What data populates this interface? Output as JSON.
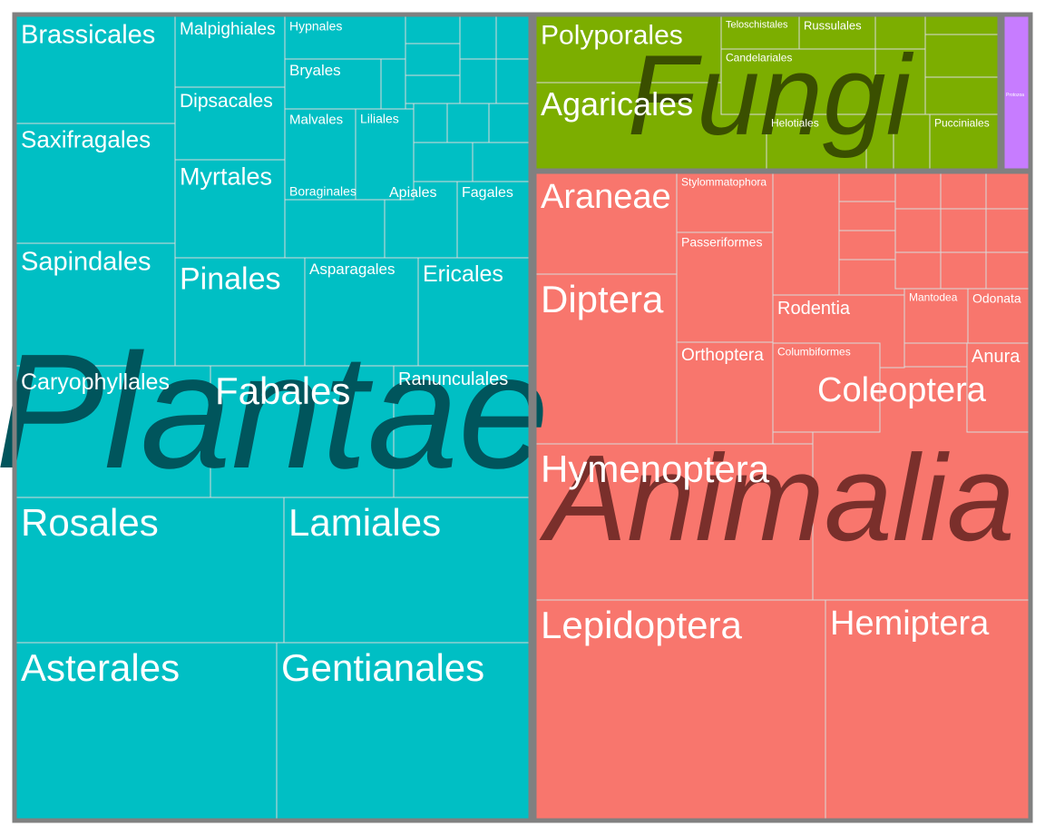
{
  "chart_data": {
    "type": "treemap",
    "title": "",
    "colors": {
      "Plantae": "#00bfc4",
      "Fungi": "#7cae00",
      "Animalia": "#f8766d",
      "Protozoa": "#c77cff",
      "border": "#808080",
      "cell_line": "#d9d9d9",
      "Plantae_label": "#00555c",
      "Fungi_label": "#3a4f00",
      "Animalia_label": "#7a2f2b"
    },
    "kingdoms": [
      {
        "name": "Plantae",
        "orders": [
          {
            "name": "Asterales",
            "value": 5400
          },
          {
            "name": "Gentianales",
            "value": 5300
          },
          {
            "name": "Rosales",
            "value": 4850
          },
          {
            "name": "Lamiales",
            "value": 4500
          },
          {
            "name": "Fabales",
            "value": 2450
          },
          {
            "name": "Caryophyllales",
            "value": 2100
          },
          {
            "name": "Ranunculales",
            "value": 1650
          },
          {
            "name": "Brassicales",
            "value": 1700
          },
          {
            "name": "Saxifragales",
            "value": 1700
          },
          {
            "name": "Sapindales",
            "value": 1700
          },
          {
            "name": "Pinales",
            "value": 1650
          },
          {
            "name": "Ericales",
            "value": 1100
          },
          {
            "name": "Asparagales",
            "value": 1000
          },
          {
            "name": "Myrtales",
            "value": 1050
          },
          {
            "name": "Dipsacales",
            "value": 900
          },
          {
            "name": "Malpighiales",
            "value": 950
          },
          {
            "name": "Boraginales",
            "value": 700
          },
          {
            "name": "Apiales",
            "value": 550
          },
          {
            "name": "Fagales",
            "value": 550
          },
          {
            "name": "Malvales",
            "value": 500
          },
          {
            "name": "Bryales",
            "value": 450
          },
          {
            "name": "Liliales",
            "value": 400
          },
          {
            "name": "Hypnales",
            "value": 380
          }
        ]
      },
      {
        "name": "Animalia",
        "orders": [
          {
            "name": "Lepidoptera",
            "value": 8800
          },
          {
            "name": "Hemiptera",
            "value": 5200
          },
          {
            "name": "Hymenoptera",
            "value": 5000
          },
          {
            "name": "Coleoptera",
            "value": 3900
          },
          {
            "name": "Diptera",
            "value": 3800
          },
          {
            "name": "Araneae",
            "value": 2000
          },
          {
            "name": "Orthoptera",
            "value": 1300
          },
          {
            "name": "Passeriformes",
            "value": 1100
          },
          {
            "name": "Stylommatophora",
            "value": 1000
          },
          {
            "name": "Rodentia",
            "value": 650
          },
          {
            "name": "Anura",
            "value": 620
          },
          {
            "name": "Columbiformes",
            "value": 560
          },
          {
            "name": "Odonata",
            "value": 330
          },
          {
            "name": "Mantodea",
            "value": 320
          }
        ]
      },
      {
        "name": "Fungi",
        "orders": [
          {
            "name": "Agaricales",
            "value": 1550
          },
          {
            "name": "Polyporales",
            "value": 1100
          },
          {
            "name": "Candelariales",
            "value": 700
          },
          {
            "name": "Teloschistales",
            "value": 550
          },
          {
            "name": "Helotiales",
            "value": 480
          },
          {
            "name": "Russulales",
            "value": 450
          },
          {
            "name": "Pucciniales",
            "value": 420
          }
        ]
      },
      {
        "name": "Protozoa",
        "orders": [
          {
            "name": "Protozoa",
            "value": 160
          }
        ]
      }
    ]
  }
}
